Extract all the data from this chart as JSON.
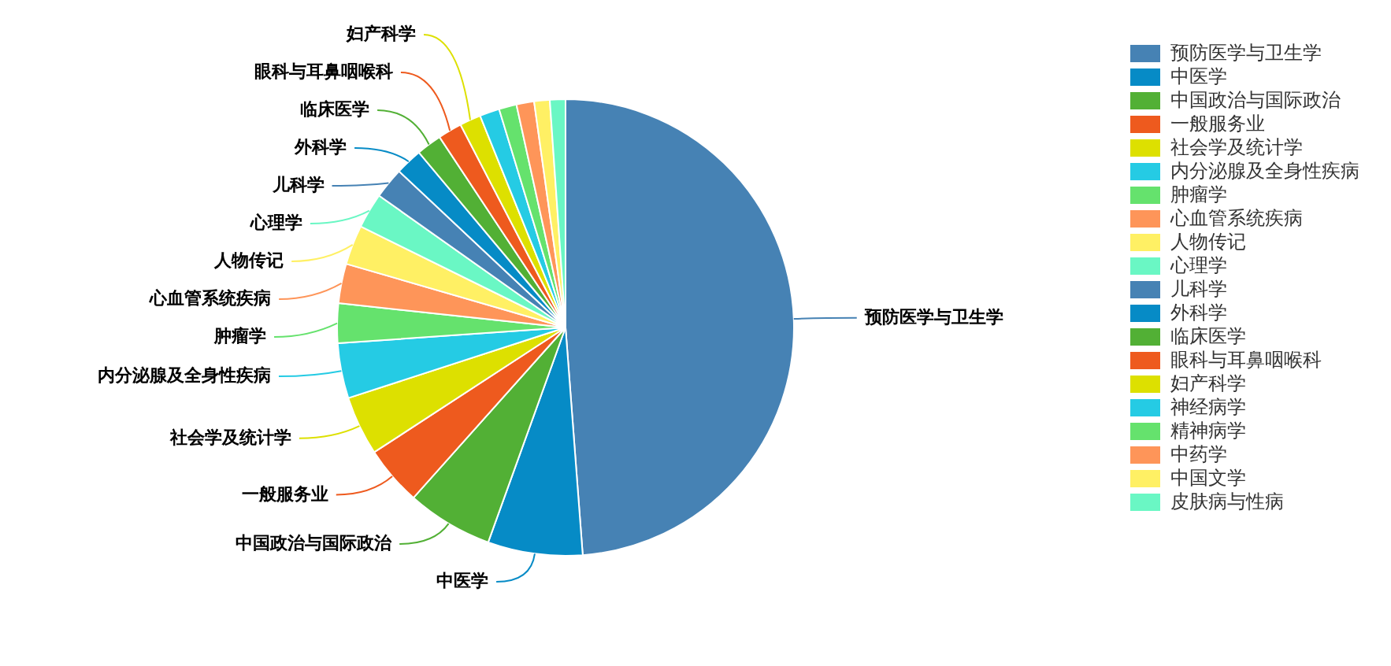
{
  "chart_data": {
    "type": "pie",
    "categories": [
      "预防医学与卫生学",
      "中医学",
      "中国政治与国际政治",
      "一般服务业",
      "社会学及统计学",
      "内分泌腺及全身性疾病",
      "肿瘤学",
      "心血管系统疾病",
      "人物传记",
      "心理学",
      "儿科学",
      "外科学",
      "临床医学",
      "眼科与耳鼻咽喉科",
      "妇产科学",
      "神经病学",
      "精神病学",
      "中药学",
      "中国文学",
      "皮肤病与性病"
    ],
    "values": [
      48.8,
      6.7,
      6.1,
      4.2,
      4.2,
      3.9,
      2.8,
      2.8,
      2.8,
      2.5,
      2.2,
      1.9,
      1.8,
      1.7,
      1.5,
      1.4,
      1.25,
      1.25,
      1.1,
      1.1
    ],
    "colors": [
      "#4682b4",
      "#068bc6",
      "#52b035",
      "#ee5a1e",
      "#dde000",
      "#25cbe4",
      "#65e26d",
      "#fe9559",
      "#fff064",
      "#6af7c4",
      "#4682b4",
      "#068bc6",
      "#52b035",
      "#ee5a1e",
      "#dde000",
      "#25cbe4",
      "#65e26d",
      "#fe9559",
      "#fff064",
      "#6af7c4"
    ],
    "legend": "top right"
  }
}
